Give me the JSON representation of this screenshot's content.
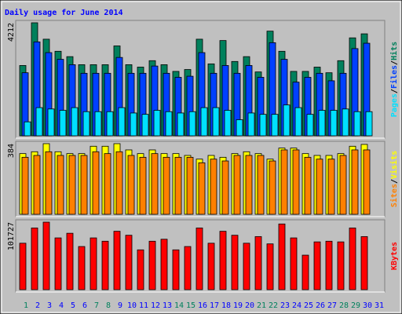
{
  "chart_data": [
    {
      "type": "bar",
      "title": "Daily usage for June 2014",
      "title_color": "#0000ff",
      "ylim": [
        0,
        4212
      ],
      "yticks": [
        4212
      ],
      "legend_separator": "/",
      "series": [
        {
          "name": "Hits",
          "color": "#00805c",
          "values": [
            2620,
            4212,
            3600,
            3150,
            2950,
            2650,
            2650,
            2650,
            3350,
            2650,
            2560,
            2800,
            2650,
            2400,
            2470,
            3600,
            2680,
            3550,
            2770,
            2950,
            2380,
            3900,
            3150,
            2400,
            2400,
            2560,
            2350,
            2800,
            3650,
            3800,
            null
          ]
        },
        {
          "name": "Files",
          "color": "#0040ff",
          "values": [
            2350,
            3500,
            3100,
            2850,
            2650,
            2330,
            2330,
            2330,
            2920,
            2330,
            2330,
            2600,
            2330,
            2180,
            2220,
            3100,
            2330,
            2620,
            2330,
            2620,
            2180,
            3470,
            2850,
            2000,
            2180,
            2330,
            2050,
            2330,
            3250,
            3450,
            null
          ]
        },
        {
          "name": "Pages",
          "color": "#00e0ff",
          "values": [
            520,
            1050,
            1000,
            950,
            1050,
            900,
            900,
            900,
            1050,
            850,
            800,
            950,
            900,
            850,
            900,
            1050,
            1050,
            950,
            600,
            850,
            800,
            800,
            1150,
            1050,
            800,
            950,
            950,
            1000,
            900,
            900,
            null
          ]
        }
      ]
    },
    {
      "type": "bar",
      "ylim": [
        0,
        384
      ],
      "yticks": [
        384
      ],
      "legend_separator": "/",
      "series": [
        {
          "name": "Visits",
          "color": "#ffff00",
          "values": [
            330,
            340,
            384,
            340,
            330,
            330,
            370,
            370,
            384,
            350,
            330,
            350,
            330,
            330,
            320,
            300,
            320,
            310,
            330,
            340,
            330,
            300,
            360,
            360,
            330,
            320,
            320,
            330,
            370,
            380,
            null
          ]
        },
        {
          "name": "Sites",
          "color": "#ff8000",
          "values": [
            310,
            320,
            340,
            320,
            320,
            320,
            340,
            330,
            340,
            320,
            310,
            330,
            310,
            310,
            310,
            280,
            300,
            290,
            320,
            320,
            320,
            290,
            350,
            350,
            310,
            300,
            300,
            320,
            350,
            350,
            null
          ]
        }
      ]
    },
    {
      "type": "bar",
      "ylim": [
        0,
        101727
      ],
      "yticks": [
        101727
      ],
      "series": [
        {
          "name": "KBytes",
          "color": "#ff0000",
          "values": [
            70000,
            93000,
            101727,
            78000,
            85000,
            65000,
            78000,
            73000,
            88000,
            82000,
            60000,
            73000,
            76000,
            60000,
            65000,
            93000,
            70000,
            88000,
            82000,
            70000,
            80000,
            69000,
            99000,
            78000,
            52000,
            72000,
            73000,
            72000,
            93000,
            80000,
            null
          ]
        }
      ],
      "categories": [
        "1",
        "2",
        "3",
        "4",
        "5",
        "6",
        "7",
        "8",
        "9",
        "10",
        "11",
        "12",
        "13",
        "14",
        "15",
        "16",
        "17",
        "18",
        "19",
        "20",
        "21",
        "22",
        "23",
        "24",
        "25",
        "26",
        "27",
        "28",
        "29",
        "30",
        "31"
      ],
      "category_colors": [
        "#00805c",
        "#0000ff",
        "#0000ff",
        "#0000ff",
        "#0000ff",
        "#0000ff",
        "#00805c",
        "#00805c",
        "#0000ff",
        "#0000ff",
        "#0000ff",
        "#0000ff",
        "#0000ff",
        "#00805c",
        "#00805c",
        "#0000ff",
        "#0000ff",
        "#0000ff",
        "#0000ff",
        "#0000ff",
        "#00805c",
        "#00805c",
        "#0000ff",
        "#0000ff",
        "#0000ff",
        "#0000ff",
        "#0000ff",
        "#00805c",
        "#00805c",
        "#0000ff",
        "#0000ff"
      ]
    }
  ]
}
